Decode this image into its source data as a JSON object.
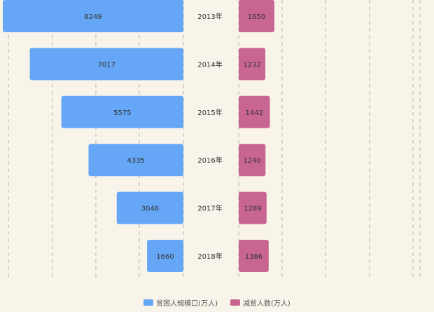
{
  "chart_data": {
    "type": "bar",
    "categories": [
      "2013年",
      "2014年",
      "2015年",
      "2016年",
      "2017年",
      "2018年"
    ],
    "series": [
      {
        "name": "贫困人规模口(万人)",
        "values": [
          8249,
          7017,
          5575,
          4335,
          3046,
          1660
        ],
        "color": "#65a6f6"
      },
      {
        "name": "减贫人数(万人)",
        "values": [
          1650,
          1232,
          1442,
          1240,
          1289,
          1386
        ],
        "color": "#c96591"
      }
    ],
    "left_axis_max": 8249,
    "right_axis_max": 1650,
    "grid": true,
    "legend_position": "bottom-center"
  }
}
